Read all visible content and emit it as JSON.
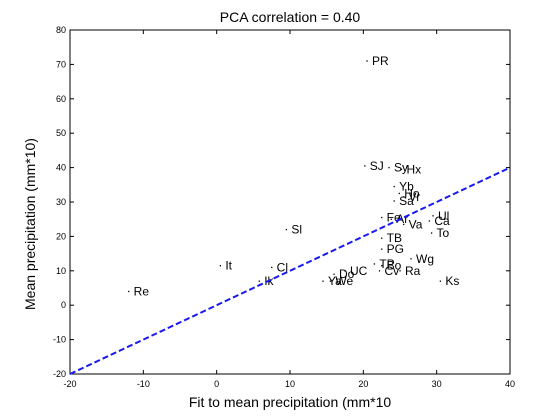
{
  "chart_data": {
    "type": "scatter",
    "title": "PCA correlation = 0.40",
    "xlabel": "Fit to mean precipitation (mm*10",
    "ylabel": "Mean precipitation (mm*10)",
    "xlim": [
      -20,
      40
    ],
    "ylim": [
      -20,
      80
    ],
    "xticks": [
      -20,
      -10,
      0,
      10,
      20,
      30,
      40
    ],
    "yticks": [
      -20,
      -10,
      0,
      10,
      20,
      30,
      40,
      50,
      60,
      70,
      80
    ],
    "grid": false,
    "points": [
      {
        "label": "PR",
        "x": 20.5,
        "y": 71
      },
      {
        "label": "SJ",
        "x": 20.2,
        "y": 40.5
      },
      {
        "label": "Sy",
        "x": 23.5,
        "y": 40
      },
      {
        "label": "Hx",
        "x": 25.2,
        "y": 39.5
      },
      {
        "label": "Yb",
        "x": 24.2,
        "y": 34.5
      },
      {
        "label": "Vr",
        "x": 25.5,
        "y": 31.5
      },
      {
        "label": "Ho",
        "x": 24.9,
        "y": 32.5
      },
      {
        "label": "Sa",
        "x": 24.2,
        "y": 30.3
      },
      {
        "label": "Re",
        "x": -12,
        "y": 4
      },
      {
        "label": "It",
        "x": 0.5,
        "y": 11.5
      },
      {
        "label": "Cl",
        "x": 7.5,
        "y": 11
      },
      {
        "label": "Ik",
        "x": 5.8,
        "y": 7
      },
      {
        "label": "Sl",
        "x": 9.5,
        "y": 22
      },
      {
        "label": "Do",
        "x": 16,
        "y": 9
      },
      {
        "label": "UC",
        "x": 17.5,
        "y": 10
      },
      {
        "label": "Ya",
        "x": 14.5,
        "y": 7
      },
      {
        "label": "We",
        "x": 15.5,
        "y": 7
      },
      {
        "label": "TB",
        "x": 22.5,
        "y": 19.5
      },
      {
        "label": "PG",
        "x": 22.5,
        "y": 16.3
      },
      {
        "label": "TP",
        "x": 21.5,
        "y": 12
      },
      {
        "label": "Bo",
        "x": 22.5,
        "y": 11.5
      },
      {
        "label": "Cv",
        "x": 22.2,
        "y": 10
      },
      {
        "label": "Ra",
        "x": 25,
        "y": 10
      },
      {
        "label": "Wg",
        "x": 26.5,
        "y": 13.5
      },
      {
        "label": "Ks",
        "x": 30.5,
        "y": 7
      },
      {
        "label": "Fe",
        "x": 22.5,
        "y": 25.5
      },
      {
        "label": "Ar",
        "x": 23.8,
        "y": 25
      },
      {
        "label": "Va",
        "x": 25.5,
        "y": 23.5
      },
      {
        "label": "Ul",
        "x": 29.5,
        "y": 26
      },
      {
        "label": "Ca",
        "x": 29,
        "y": 24.5
      },
      {
        "label": "To",
        "x": 29.3,
        "y": 21
      }
    ],
    "fit_line": {
      "x": [
        -20,
        40
      ],
      "y": [
        -20,
        40
      ],
      "color": "#1a1aee",
      "style": "dashed"
    }
  }
}
